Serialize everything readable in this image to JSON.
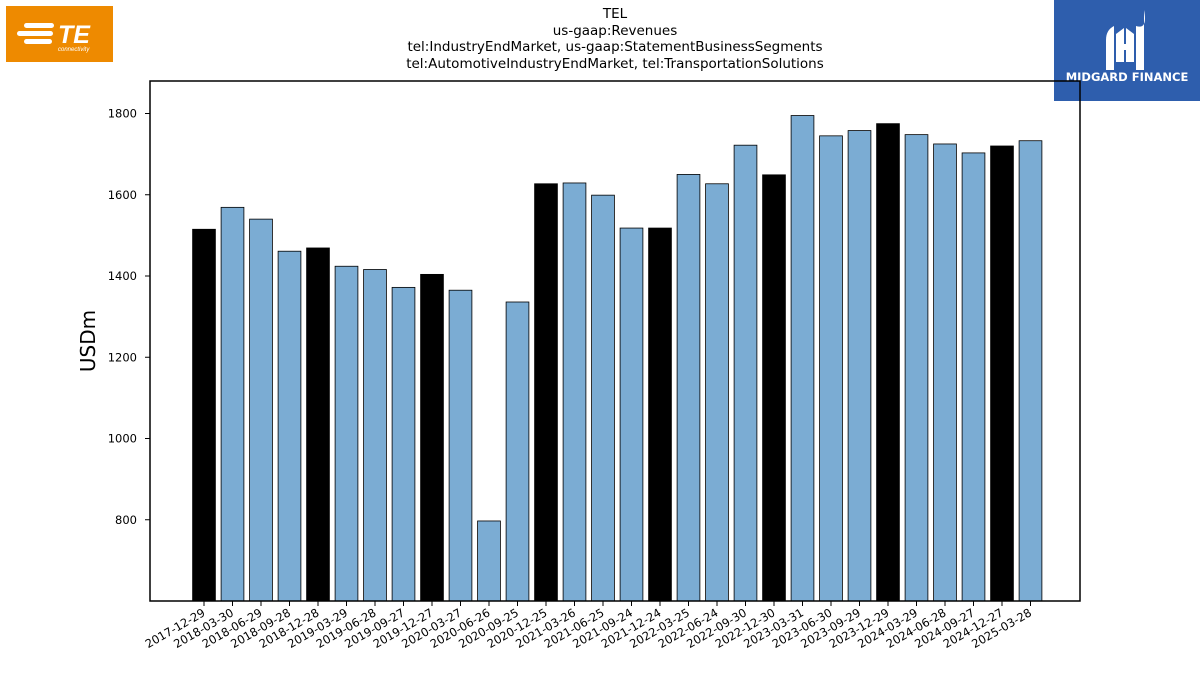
{
  "title": {
    "lines": [
      "TEL",
      "us-gaap:Revenues",
      "tel:IndustryEndMarket, us-gaap:StatementBusinessSegments",
      "tel:AutomotiveIndustryEndMarket, tel:TransportationSolutions"
    ]
  },
  "logos": {
    "left": {
      "text": "TE",
      "subtext": "connectivity",
      "color": "#ee8a00"
    },
    "right": {
      "text": "MIDGARD FINANCE",
      "color": "#2e5ead"
    }
  },
  "chart_data": {
    "type": "bar",
    "ylabel": "USDm",
    "xlabel": "",
    "ylim": [
      600,
      1880
    ],
    "yticks": [
      800,
      1000,
      1200,
      1400,
      1600,
      1800
    ],
    "colors": {
      "highlight": "#000000",
      "default": "#7bacd3",
      "edge": "#000000"
    },
    "highlight_rule": "fiscal Q1 bars (December period ends) drawn black",
    "categories": [
      "2017-12-29",
      "2018-03-30",
      "2018-06-29",
      "2018-09-28",
      "2018-12-28",
      "2019-03-29",
      "2019-06-28",
      "2019-09-27",
      "2019-12-27",
      "2020-03-27",
      "2020-06-26",
      "2020-09-25",
      "2020-12-25",
      "2021-03-26",
      "2021-06-25",
      "2021-09-24",
      "2021-12-24",
      "2022-03-25",
      "2022-06-24",
      "2022-09-30",
      "2022-12-30",
      "2023-03-31",
      "2023-06-30",
      "2023-09-29",
      "2023-12-29",
      "2024-03-29",
      "2024-06-28",
      "2024-09-27",
      "2024-12-27",
      "2025-03-28"
    ],
    "values": [
      1515,
      1569,
      1540,
      1461,
      1469,
      1424,
      1416,
      1372,
      1404,
      1365,
      797,
      1336,
      1627,
      1629,
      1599,
      1518,
      1518,
      1650,
      1627,
      1722,
      1649,
      1795,
      1745,
      1758,
      1775,
      1748,
      1725,
      1703,
      1720,
      1733
    ],
    "highlight": [
      true,
      false,
      false,
      false,
      true,
      false,
      false,
      false,
      true,
      false,
      false,
      false,
      true,
      false,
      false,
      false,
      true,
      false,
      false,
      false,
      true,
      false,
      false,
      false,
      true,
      false,
      false,
      false,
      true,
      false
    ]
  }
}
